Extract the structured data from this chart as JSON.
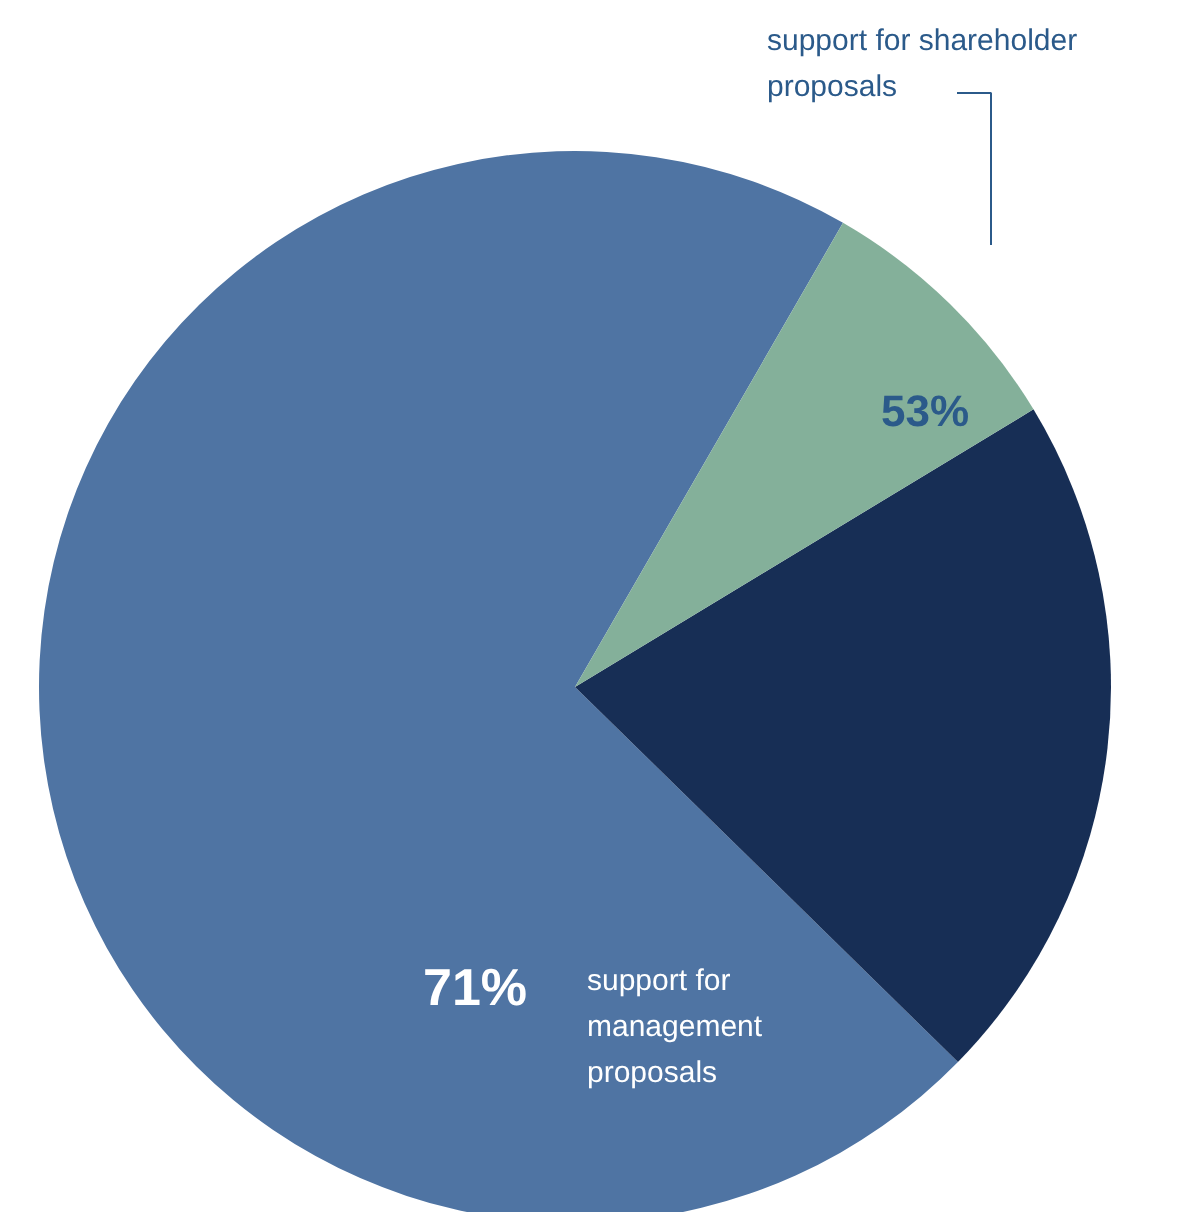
{
  "chart_data": {
    "type": "pie",
    "categories": [
      "support for management proposals",
      null,
      "support for shareholder proposals"
    ],
    "values": [
      71,
      21,
      8
    ],
    "colors": [
      "#4f74a3",
      "#172e55",
      "#84b09a"
    ],
    "value_labels": [
      "71%",
      null,
      null
    ],
    "annotations": [
      "53%"
    ]
  }
}
